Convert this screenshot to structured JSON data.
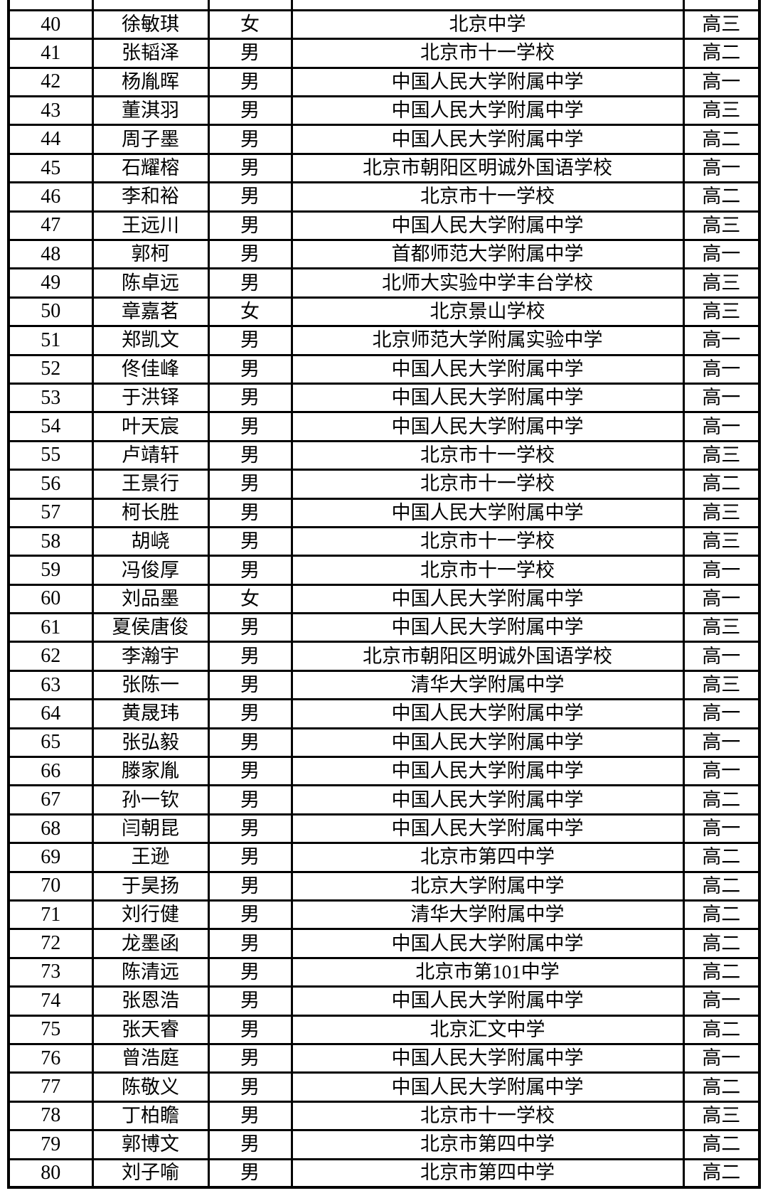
{
  "table": {
    "column_keys": [
      "no",
      "name",
      "gender",
      "school",
      "grade"
    ],
    "rows": [
      {
        "no": "40",
        "name": "徐敏琪",
        "gender": "女",
        "school": "北京中学",
        "grade": "高三"
      },
      {
        "no": "41",
        "name": "张韬泽",
        "gender": "男",
        "school": "北京市十一学校",
        "grade": "高二"
      },
      {
        "no": "42",
        "name": "杨胤晖",
        "gender": "男",
        "school": "中国人民大学附属中学",
        "grade": "高一"
      },
      {
        "no": "43",
        "name": "董淇羽",
        "gender": "男",
        "school": "中国人民大学附属中学",
        "grade": "高三"
      },
      {
        "no": "44",
        "name": "周子墨",
        "gender": "男",
        "school": "中国人民大学附属中学",
        "grade": "高二"
      },
      {
        "no": "45",
        "name": "石耀榕",
        "gender": "男",
        "school": "北京市朝阳区明诚外国语学校",
        "grade": "高一"
      },
      {
        "no": "46",
        "name": "李和裕",
        "gender": "男",
        "school": "北京市十一学校",
        "grade": "高二"
      },
      {
        "no": "47",
        "name": "王远川",
        "gender": "男",
        "school": "中国人民大学附属中学",
        "grade": "高三"
      },
      {
        "no": "48",
        "name": "郭柯",
        "gender": "男",
        "school": "首都师范大学附属中学",
        "grade": "高一"
      },
      {
        "no": "49",
        "name": "陈卓远",
        "gender": "男",
        "school": "北师大实验中学丰台学校",
        "grade": "高三"
      },
      {
        "no": "50",
        "name": "章嘉茗",
        "gender": "女",
        "school": "北京景山学校",
        "grade": "高三"
      },
      {
        "no": "51",
        "name": "郑凯文",
        "gender": "男",
        "school": "北京师范大学附属实验中学",
        "grade": "高一"
      },
      {
        "no": "52",
        "name": "佟佳峰",
        "gender": "男",
        "school": "中国人民大学附属中学",
        "grade": "高一"
      },
      {
        "no": "53",
        "name": "于洪铎",
        "gender": "男",
        "school": "中国人民大学附属中学",
        "grade": "高一"
      },
      {
        "no": "54",
        "name": "叶天宸",
        "gender": "男",
        "school": "中国人民大学附属中学",
        "grade": "高一"
      },
      {
        "no": "55",
        "name": "卢靖轩",
        "gender": "男",
        "school": "北京市十一学校",
        "grade": "高三"
      },
      {
        "no": "56",
        "name": "王景行",
        "gender": "男",
        "school": "北京市十一学校",
        "grade": "高二"
      },
      {
        "no": "57",
        "name": "柯长胜",
        "gender": "男",
        "school": "中国人民大学附属中学",
        "grade": "高三"
      },
      {
        "no": "58",
        "name": "胡峣",
        "gender": "男",
        "school": "北京市十一学校",
        "grade": "高三"
      },
      {
        "no": "59",
        "name": "冯俊厚",
        "gender": "男",
        "school": "北京市十一学校",
        "grade": "高一"
      },
      {
        "no": "60",
        "name": "刘品墨",
        "gender": "女",
        "school": "中国人民大学附属中学",
        "grade": "高一"
      },
      {
        "no": "61",
        "name": "夏侯唐俊",
        "gender": "男",
        "school": "中国人民大学附属中学",
        "grade": "高三"
      },
      {
        "no": "62",
        "name": "李瀚宇",
        "gender": "男",
        "school": "北京市朝阳区明诚外国语学校",
        "grade": "高一"
      },
      {
        "no": "63",
        "name": "张陈一",
        "gender": "男",
        "school": "清华大学附属中学",
        "grade": "高三"
      },
      {
        "no": "64",
        "name": "黄晟玮",
        "gender": "男",
        "school": "中国人民大学附属中学",
        "grade": "高一"
      },
      {
        "no": "65",
        "name": "张弘毅",
        "gender": "男",
        "school": "中国人民大学附属中学",
        "grade": "高一"
      },
      {
        "no": "66",
        "name": "滕家胤",
        "gender": "男",
        "school": "中国人民大学附属中学",
        "grade": "高一"
      },
      {
        "no": "67",
        "name": "孙一钦",
        "gender": "男",
        "school": "中国人民大学附属中学",
        "grade": "高二"
      },
      {
        "no": "68",
        "name": "闫朝昆",
        "gender": "男",
        "school": "中国人民大学附属中学",
        "grade": "高一"
      },
      {
        "no": "69",
        "name": "王逊",
        "gender": "男",
        "school": "北京市第四中学",
        "grade": "高二"
      },
      {
        "no": "70",
        "name": "于昊扬",
        "gender": "男",
        "school": "北京大学附属中学",
        "grade": "高二"
      },
      {
        "no": "71",
        "name": "刘行健",
        "gender": "男",
        "school": "清华大学附属中学",
        "grade": "高二"
      },
      {
        "no": "72",
        "name": "龙墨函",
        "gender": "男",
        "school": "中国人民大学附属中学",
        "grade": "高二"
      },
      {
        "no": "73",
        "name": "陈清远",
        "gender": "男",
        "school": "北京市第101中学",
        "grade": "高二"
      },
      {
        "no": "74",
        "name": "张恩浩",
        "gender": "男",
        "school": "中国人民大学附属中学",
        "grade": "高一"
      },
      {
        "no": "75",
        "name": "张天睿",
        "gender": "男",
        "school": "北京汇文中学",
        "grade": "高二"
      },
      {
        "no": "76",
        "name": "曾浩庭",
        "gender": "男",
        "school": "中国人民大学附属中学",
        "grade": "高一"
      },
      {
        "no": "77",
        "name": "陈敬义",
        "gender": "男",
        "school": "中国人民大学附属中学",
        "grade": "高二"
      },
      {
        "no": "78",
        "name": "丁柏瞻",
        "gender": "男",
        "school": "北京市十一学校",
        "grade": "高三"
      },
      {
        "no": "79",
        "name": "郭博文",
        "gender": "男",
        "school": "北京市第四中学",
        "grade": "高二"
      },
      {
        "no": "80",
        "name": "刘子喻",
        "gender": "男",
        "school": "北京市第四中学",
        "grade": "高二"
      }
    ]
  }
}
